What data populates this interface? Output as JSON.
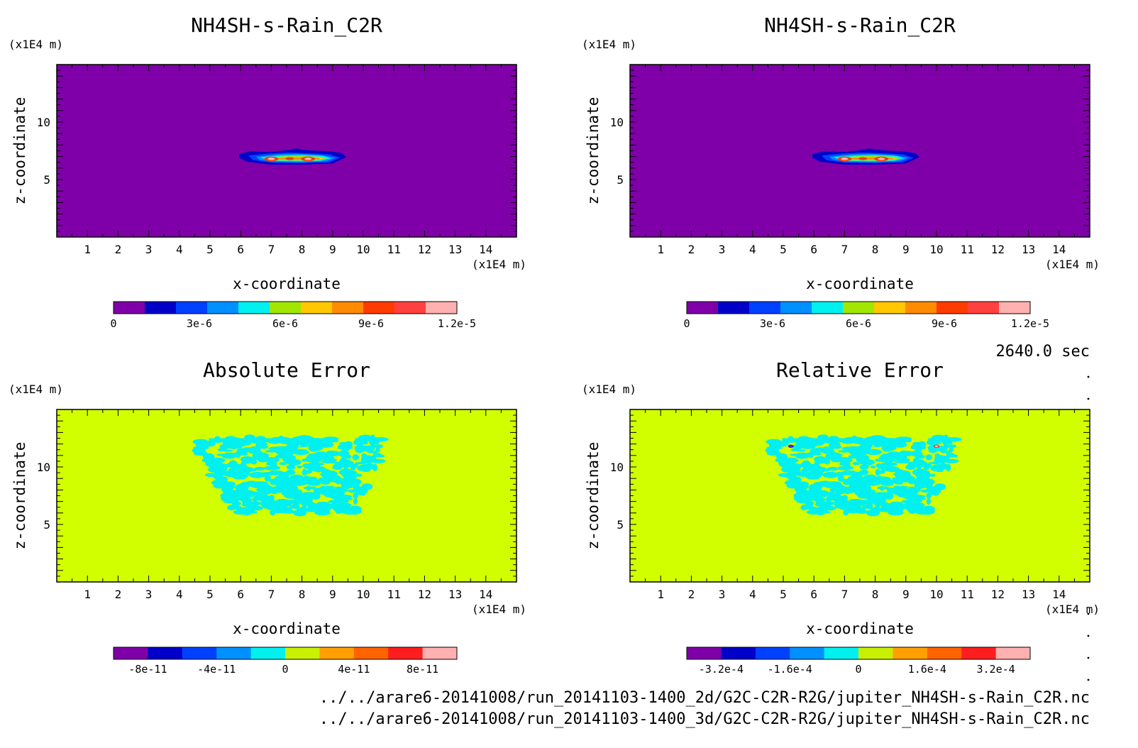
{
  "time_label": "2640.0 sec",
  "files": [
    "../../arare6-20141008/run_20141103-1400_2d/G2C-C2R-R2G/jupiter_NH4SH-s-Rain_C2R.nc",
    "../../arare6-20141008/run_20141103-1400_3d/G2C-C2R-R2G/jupiter_NH4SH-s-Rain_C2R.nc"
  ],
  "chart_data": [
    {
      "type": "heatmap",
      "title": "NH4SH-s-Rain_C2R",
      "xlabel": "x-coordinate",
      "ylabel": "z-coordinate",
      "x_unit": "(x1E4 m)",
      "y_unit": "(x1E4 m)",
      "xlim": [
        0,
        15
      ],
      "ylim": [
        0,
        15
      ],
      "x_ticks": [
        "1",
        "2",
        "3",
        "4",
        "5",
        "6",
        "7",
        "8",
        "9",
        "10",
        "11",
        "12",
        "13",
        "14"
      ],
      "y_ticks": [
        "5",
        "10"
      ],
      "background_color": "#7f00a8",
      "colorbar": {
        "labels": [
          "0",
          "3e-6",
          "6e-6",
          "9e-6",
          "1.2e-5"
        ],
        "colors": [
          "#7f00a8",
          "#0000c8",
          "#0040ff",
          "#0090ff",
          "#00f0f0",
          "#a0e600",
          "#ffc800",
          "#ff8c00",
          "#ff3c00",
          "#ff4040",
          "#ffb0b0"
        ]
      },
      "feature": "cloud layer centred near x=7.6, z=6.8 (x1E4 m); peak ~1.2e-5"
    },
    {
      "type": "heatmap",
      "title": "NH4SH-s-Rain_C2R",
      "xlabel": "x-coordinate",
      "ylabel": "z-coordinate",
      "x_unit": "(x1E4 m)",
      "y_unit": "(x1E4 m)",
      "xlim": [
        0,
        15
      ],
      "ylim": [
        0,
        15
      ],
      "x_ticks": [
        "1",
        "2",
        "3",
        "4",
        "5",
        "6",
        "7",
        "8",
        "9",
        "10",
        "11",
        "12",
        "13",
        "14"
      ],
      "y_ticks": [
        "5",
        "10"
      ],
      "background_color": "#7f00a8",
      "colorbar": {
        "labels": [
          "0",
          "3e-6",
          "6e-6",
          "9e-6",
          "1.2e-5"
        ],
        "colors": [
          "#7f00a8",
          "#0000c8",
          "#0040ff",
          "#0090ff",
          "#00f0f0",
          "#a0e600",
          "#ffc800",
          "#ff8c00",
          "#ff3c00",
          "#ff4040",
          "#ffb0b0"
        ]
      },
      "feature": "cloud layer centred near x=7.6, z=6.8 (x1E4 m); peak ~1.2e-5"
    },
    {
      "type": "heatmap",
      "title": "Absolute Error",
      "xlabel": "x-coordinate",
      "ylabel": "z-coordinate",
      "x_unit": "(x1E4 m)",
      "y_unit": "(x1E4 m)",
      "xlim": [
        0,
        15
      ],
      "ylim": [
        0,
        15
      ],
      "x_ticks": [
        "1",
        "2",
        "3",
        "4",
        "5",
        "6",
        "7",
        "8",
        "9",
        "10",
        "11",
        "12",
        "13",
        "14"
      ],
      "y_ticks": [
        "5",
        "10"
      ],
      "background_color": "#d2ff00",
      "colorbar": {
        "labels": [
          "-8e-11",
          "-4e-11",
          "0",
          "4e-11",
          "8e-11"
        ],
        "colors": [
          "#7f00a8",
          "#0000c8",
          "#0040ff",
          "#0090ff",
          "#00f0f0",
          "#c8f000",
          "#ffa000",
          "#ff6400",
          "#ff1e1e",
          "#ffb0b0"
        ]
      },
      "feature": "small negative errors (cyan) in region x 4.5-10.5, z 6-12.5 (x1E4 m)"
    },
    {
      "type": "heatmap",
      "title": "Relative Error",
      "xlabel": "x-coordinate",
      "ylabel": "z-coordinate",
      "x_unit": "(x1E4 m)",
      "y_unit": "(x1E4 m)",
      "xlim": [
        0,
        15
      ],
      "ylim": [
        0,
        15
      ],
      "x_ticks": [
        "1",
        "2",
        "3",
        "4",
        "5",
        "6",
        "7",
        "8",
        "9",
        "10",
        "11",
        "12",
        "13",
        "14"
      ],
      "y_ticks": [
        "5",
        "10"
      ],
      "background_color": "#d2ff00",
      "colorbar": {
        "labels": [
          "-3.2e-4",
          "-1.6e-4",
          "0",
          "1.6e-4",
          "3.2e-4"
        ],
        "colors": [
          "#7f00a8",
          "#0000c8",
          "#0040ff",
          "#0090ff",
          "#00f0f0",
          "#c8f000",
          "#ffa000",
          "#ff6400",
          "#ff1e1e",
          "#ffb0b0"
        ]
      },
      "feature": "same pattern as absolute error with extremes near x=5.2 and x=10.0 at z=11.8"
    }
  ]
}
